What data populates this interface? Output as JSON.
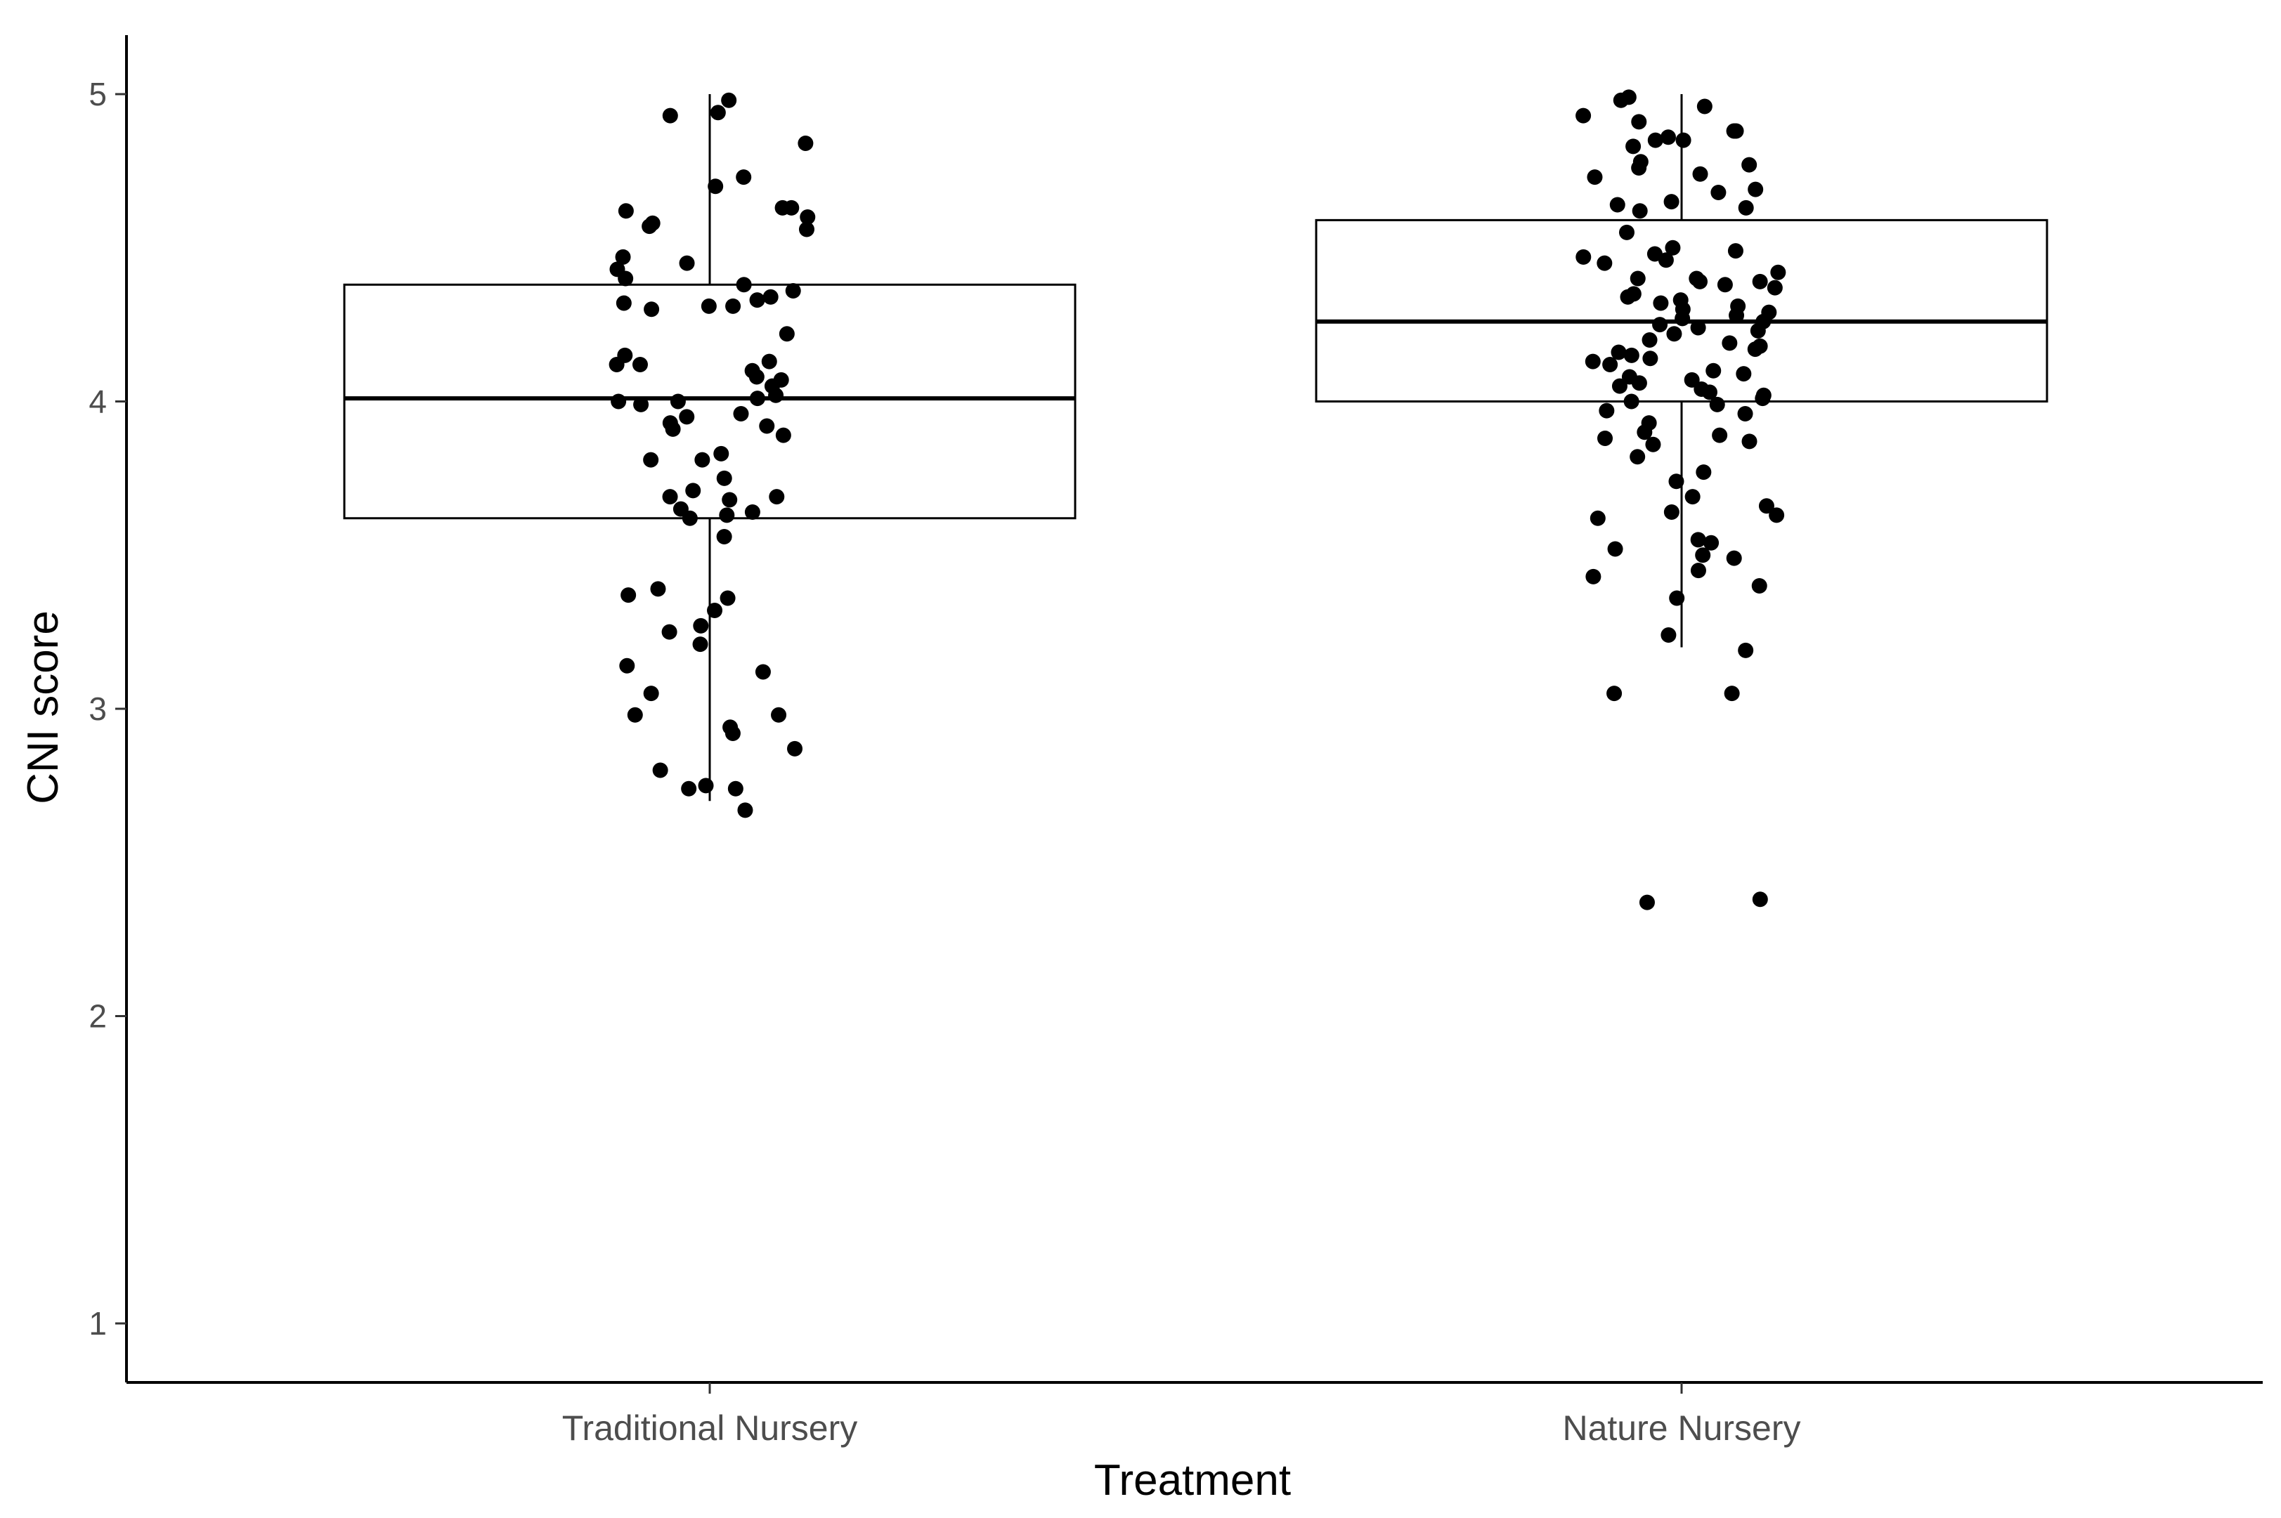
{
  "chart_data": {
    "type": "boxplot",
    "title": "",
    "xlabel": "Treatment",
    "ylabel": "CNI score",
    "ylim": [
      0.8,
      5.2
    ],
    "y_ticks": [
      1,
      2,
      3,
      4,
      5
    ],
    "categories": [
      "Traditional Nursery",
      "Nature Nursery"
    ],
    "grid": false,
    "legend": "none",
    "colors": {
      "box": "#000000",
      "points": "#000000",
      "axis": "#000000"
    },
    "boxes": [
      {
        "category": "Traditional Nursery",
        "whisker_low": 2.7,
        "q1": 3.62,
        "median": 4.01,
        "q3": 4.38,
        "whisker_high": 5.0
      },
      {
        "category": "Nature Nursery",
        "whisker_low": 3.2,
        "q1": 4.0,
        "median": 4.26,
        "q3": 4.59,
        "whisker_high": 5.0
      }
    ],
    "points": [
      {
        "category": "Traditional Nursery",
        "values": [
          4.98,
          4.93,
          4.94,
          4.84,
          4.73,
          4.7,
          4.63,
          4.63,
          4.62,
          4.6,
          4.58,
          4.57,
          4.56,
          4.47,
          4.45,
          4.43,
          4.4,
          4.38,
          4.36,
          4.34,
          4.33,
          4.32,
          4.31,
          4.31,
          4.3,
          4.22,
          4.15,
          4.13,
          4.12,
          4.12,
          4.1,
          4.08,
          4.07,
          4.05,
          4.02,
          4.01,
          4.0,
          4.0,
          3.99,
          3.96,
          3.95,
          3.93,
          3.92,
          3.91,
          3.89,
          3.83,
          3.81,
          3.81,
          3.75,
          3.71,
          3.69,
          3.69,
          3.68,
          3.65,
          3.64,
          3.63,
          3.62,
          3.56,
          3.39,
          3.37,
          3.36,
          3.32,
          3.27,
          3.25,
          3.21,
          3.14,
          3.12,
          3.05,
          2.98,
          2.98,
          2.94,
          2.92,
          2.87,
          2.8,
          2.75,
          2.74,
          2.74,
          2.67
        ]
      },
      {
        "category": "Nature Nursery",
        "values": [
          4.99,
          4.98,
          4.96,
          4.93,
          4.91,
          4.88,
          4.88,
          4.86,
          4.85,
          4.85,
          4.83,
          4.78,
          4.77,
          4.76,
          4.74,
          4.73,
          4.69,
          4.68,
          4.65,
          4.64,
          4.63,
          4.62,
          4.55,
          4.5,
          4.49,
          4.48,
          4.47,
          4.46,
          4.45,
          4.42,
          4.4,
          4.4,
          4.39,
          4.39,
          4.38,
          4.37,
          4.35,
          4.34,
          4.33,
          4.32,
          4.31,
          4.3,
          4.29,
          4.28,
          4.27,
          4.26,
          4.25,
          4.24,
          4.23,
          4.22,
          4.2,
          4.19,
          4.18,
          4.17,
          4.16,
          4.15,
          4.14,
          4.13,
          4.12,
          4.1,
          4.09,
          4.08,
          4.07,
          4.06,
          4.05,
          4.04,
          4.03,
          4.02,
          4.01,
          4.0,
          3.99,
          3.97,
          3.96,
          3.93,
          3.9,
          3.89,
          3.88,
          3.87,
          3.86,
          3.82,
          3.77,
          3.74,
          3.69,
          3.66,
          3.64,
          3.63,
          3.62,
          3.55,
          3.54,
          3.52,
          3.5,
          3.49,
          3.45,
          3.43,
          3.4,
          3.36,
          3.24,
          3.19,
          3.05,
          3.05,
          2.38,
          2.37
        ]
      }
    ]
  }
}
